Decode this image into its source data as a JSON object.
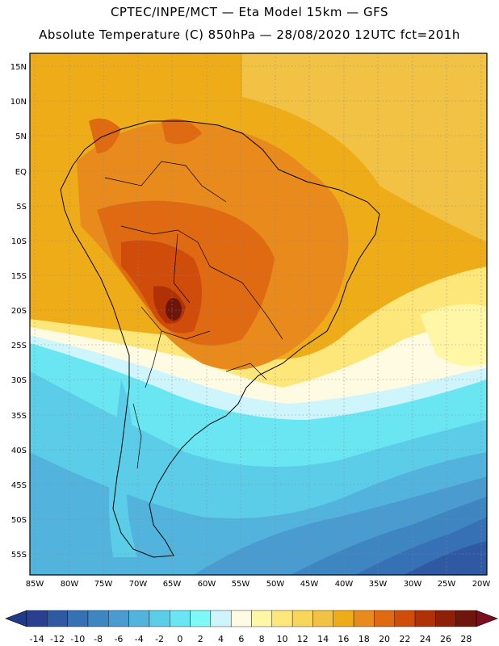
{
  "header": {
    "line1": "CPTEC/INPE/MCT —   Eta Model 15km — GFS",
    "line2": "Absolute Temperature (C) 850hPa — 28/08/2020 12UTC fct=201h"
  },
  "map": {
    "lat_labels": [
      "15N",
      "10N",
      "5N",
      "EQ",
      "5S",
      "10S",
      "15S",
      "20S",
      "25S",
      "30S",
      "35S",
      "40S",
      "45S",
      "50S",
      "55S"
    ],
    "lon_labels": [
      "85W",
      "80W",
      "75W",
      "70W",
      "65W",
      "60W",
      "55W",
      "50W",
      "45W",
      "40W",
      "35W",
      "30W",
      "25W",
      "20W"
    ]
  },
  "colorbar": {
    "labels": [
      "-14",
      "-12",
      "-10",
      "-8",
      "-6",
      "-4",
      "-2",
      "0",
      "2",
      "4",
      "6",
      "8",
      "10",
      "12",
      "14",
      "16",
      "18",
      "20",
      "22",
      "24",
      "26",
      "28"
    ],
    "colors": [
      "#2a3f8f",
      "#2f5aa3",
      "#3571b4",
      "#3d86c2",
      "#4a9bd0",
      "#52b3dc",
      "#5ccde8",
      "#6ae5f2",
      "#7ff8f8",
      "#cdf5fb",
      "#fffbe2",
      "#fff7a6",
      "#fde77a",
      "#f7d659",
      "#f1c244",
      "#efac19",
      "#e88a1c",
      "#e06a12",
      "#cf4c0a",
      "#b03106",
      "#8e2009",
      "#6e160c"
    ],
    "under_color": "#1f3a86",
    "over_color": "#7a0e1f"
  }
}
